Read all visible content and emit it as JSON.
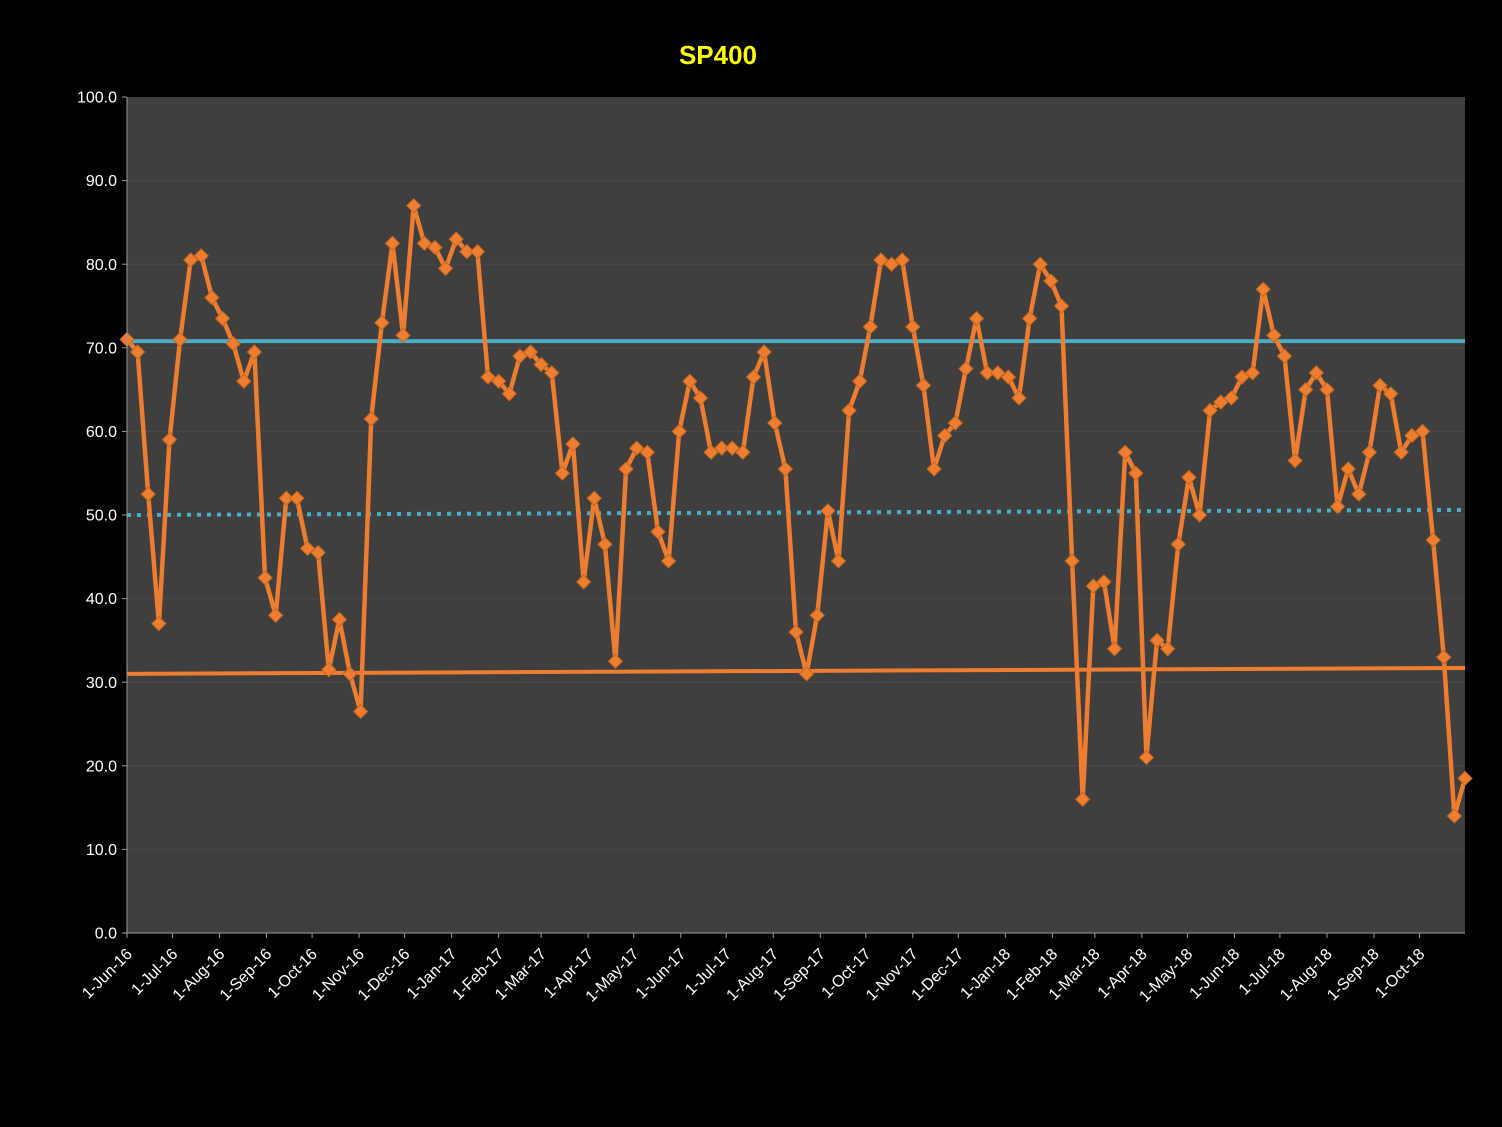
{
  "chart_data": {
    "type": "line",
    "title": "SP400",
    "title_color": "#FFFF00",
    "page_bg": "#000000",
    "plot_bg": "#3F3F3F",
    "grid": "horizontal-subtle",
    "grid_color": "#4A4A4A",
    "axis_text_color": "#FFFFFF",
    "legend": "none",
    "ylim": [
      0,
      100
    ],
    "y_tick_step": 10,
    "y_tick_format": "one-decimal",
    "x_tick_labels": [
      "1-Jun-16",
      "1-Jul-16",
      "1-Aug-16",
      "1-Sep-16",
      "1-Oct-16",
      "1-Nov-16",
      "1-Dec-16",
      "1-Jan-17",
      "1-Feb-17",
      "1-Mar-17",
      "1-Apr-17",
      "1-May-17",
      "1-Jun-17",
      "1-Jul-17",
      "1-Aug-17",
      "1-Sep-17",
      "1-Oct-17",
      "1-Nov-17",
      "1-Dec-17",
      "1-Jan-18",
      "1-Feb-18",
      "1-Mar-18",
      "1-Apr-18",
      "1-May-18",
      "1-Jun-18",
      "1-Jul-18",
      "1-Aug-18",
      "1-Sep-18",
      "1-Oct-18"
    ],
    "x_label_rotation": -45,
    "point_interval_days": 7,
    "series": [
      {
        "name": "SP400",
        "color": "#ED7D31",
        "marker": "diamond",
        "values": [
          71.0,
          69.5,
          52.5,
          37.0,
          59.0,
          71.0,
          80.5,
          81.0,
          76.0,
          73.5,
          70.5,
          66.0,
          69.5,
          42.5,
          38.0,
          52.0,
          52.0,
          46.0,
          45.5,
          31.5,
          37.5,
          31.0,
          26.5,
          61.5,
          73.0,
          82.5,
          71.5,
          87.0,
          82.5,
          82.0,
          79.5,
          83.0,
          81.5,
          81.5,
          66.5,
          66.0,
          64.5,
          69.0,
          69.5,
          68.0,
          67.0,
          55.0,
          58.5,
          42.0,
          52.0,
          46.5,
          32.5,
          55.5,
          58.0,
          57.5,
          48.0,
          44.5,
          60.0,
          66.0,
          64.0,
          57.5,
          58.0,
          58.0,
          57.5,
          66.5,
          69.5,
          61.0,
          55.5,
          36.0,
          31.0,
          38.0,
          50.5,
          44.5,
          62.5,
          66.0,
          72.5,
          80.5,
          80.0,
          80.5,
          72.5,
          65.5,
          55.5,
          59.5,
          61.0,
          67.5,
          73.5,
          67.0,
          67.0,
          66.5,
          64.0,
          73.5,
          80.0,
          78.0,
          75.0,
          44.5,
          16.0,
          41.5,
          42.0,
          34.0,
          57.5,
          55.0,
          21.0,
          35.0,
          34.0,
          46.5,
          54.5,
          50.0,
          62.5,
          63.5,
          64.0,
          66.5,
          67.0,
          77.0,
          71.5,
          69.0,
          56.5,
          65.0,
          67.0,
          65.0,
          51.0,
          55.5,
          52.5,
          57.5,
          65.5,
          64.5,
          57.5,
          59.5,
          60.0,
          47.0,
          33.0,
          14.0,
          18.5
        ]
      }
    ],
    "reference_lines": [
      {
        "name": "upper-band",
        "style": "solid",
        "color": "#4BACC6",
        "value_start": 70.8,
        "value_end": 70.8,
        "width": 4
      },
      {
        "name": "mid-band",
        "style": "dotted",
        "color": "#4BACC6",
        "value_start": 50.0,
        "value_end": 50.6,
        "width": 4
      },
      {
        "name": "lower-band",
        "style": "solid",
        "color": "#ED7D31",
        "value_start": 31.0,
        "value_end": 31.7,
        "width": 4
      }
    ]
  }
}
